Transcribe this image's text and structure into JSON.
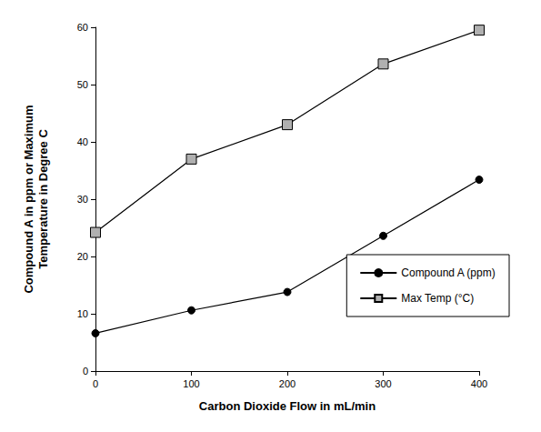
{
  "chart_data": {
    "type": "line",
    "x_label": "Carbon Dioxide Flow in mL/min",
    "y_label": "Compound A in ppm or Maximum\nTemperature in Degree C",
    "x": [
      0,
      100,
      200,
      300,
      400
    ],
    "series": [
      {
        "name": "Compound A (ppm)",
        "color": "#000000",
        "marker": "circle",
        "values": [
          6.6,
          10.6,
          13.8,
          23.6,
          33.4
        ]
      },
      {
        "name": "Max Temp (°C)",
        "color": "#b0b0b0",
        "marker": "square",
        "values": [
          24.2,
          37.0,
          43.0,
          53.6,
          59.5
        ]
      }
    ],
    "xlim": [
      0,
      400
    ],
    "xticks": [
      0,
      100,
      200,
      300,
      400
    ],
    "ylim": [
      0,
      60
    ],
    "yticks": [
      0,
      10,
      20,
      30,
      40,
      50,
      60
    ],
    "grid": false,
    "legend": "lower right"
  }
}
